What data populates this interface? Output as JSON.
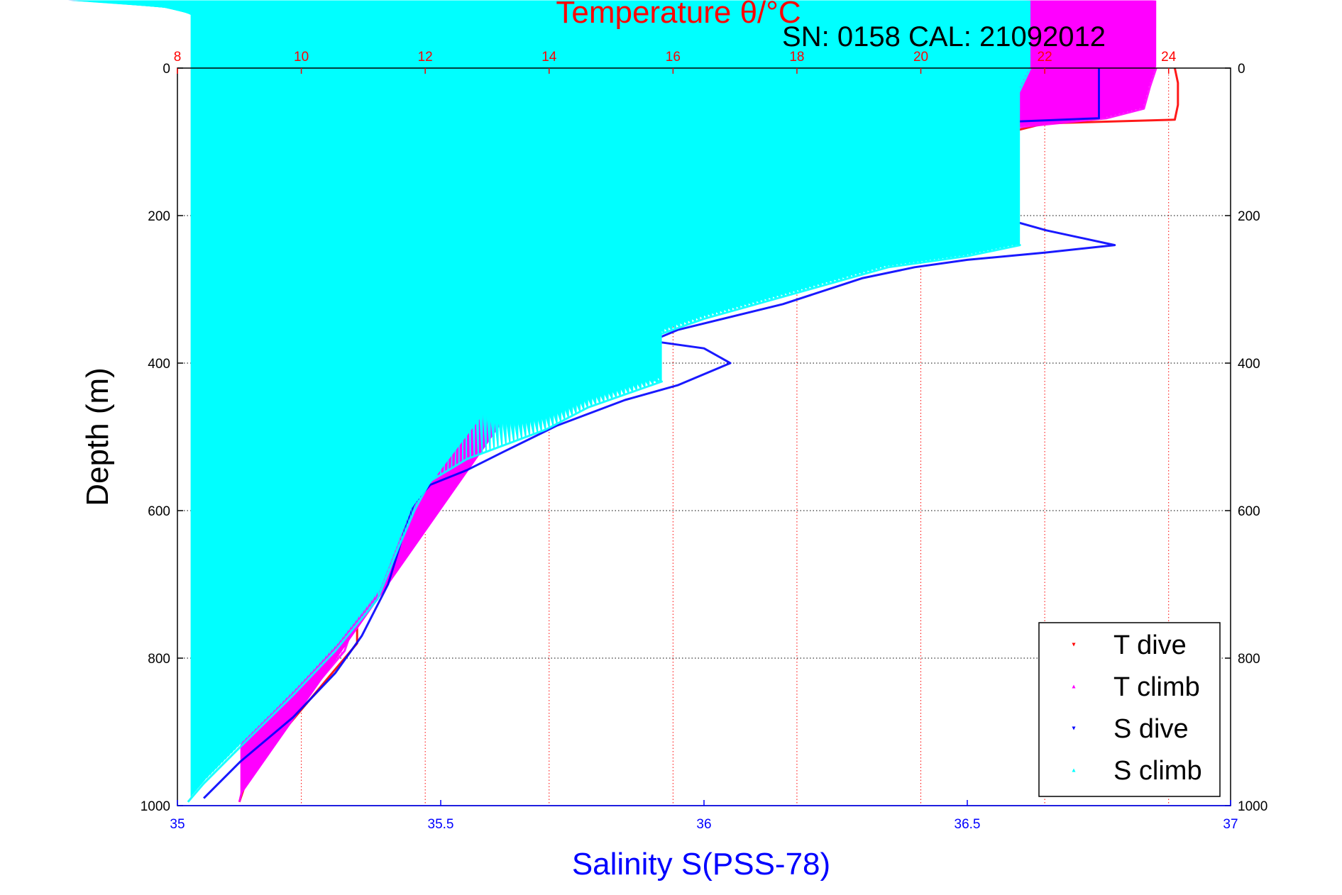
{
  "colors": {
    "temperature_axis": "#ff0000",
    "salinity_axis": "#0000ff",
    "T_dive": "#ff0000",
    "T_climb": "#ff00ff",
    "S_dive": "#0000ff",
    "S_climb": "#00ffff",
    "frame": "#000000",
    "background": "#ffffff"
  },
  "chart_data": {
    "type": "scatter",
    "top_title": "Temperature θ/°C",
    "subtitle": "SN: 0158  CAL: 21092012",
    "ylabel": "Depth (m)",
    "xlabel_bottom": "Salinity S(PSS-78)",
    "temperature_axis": {
      "range": [
        8,
        25
      ],
      "ticks": [
        8,
        10,
        12,
        14,
        16,
        18,
        20,
        22,
        24
      ],
      "tick_labels": [
        "8",
        "10",
        "12",
        "14",
        "16",
        "18",
        "20",
        "22",
        "24"
      ]
    },
    "salinity_axis": {
      "range": [
        35,
        37
      ],
      "ticks": [
        35,
        35.5,
        36,
        36.5,
        37
      ],
      "tick_labels": [
        "35",
        "35.5",
        "36",
        "36.5",
        "37"
      ]
    },
    "depth_axis": {
      "range": [
        0,
        1000
      ],
      "reversed": true,
      "ticks": [
        0,
        200,
        400,
        600,
        800,
        1000
      ],
      "tick_labels": [
        "0",
        "200",
        "400",
        "600",
        "800",
        "1000"
      ]
    },
    "grid": {
      "temperature_vertical": true,
      "depth_horizontal": true
    },
    "legend_position": "bottom-right",
    "series": [
      {
        "name": "T dive",
        "axis": "temperature",
        "marker": "triangle-down",
        "points": [
          [
            24.1,
            0
          ],
          [
            24.15,
            20
          ],
          [
            24.15,
            50
          ],
          [
            24.1,
            70
          ],
          [
            22,
            75
          ],
          [
            20.8,
            100
          ],
          [
            19.8,
            130
          ],
          [
            19.2,
            160
          ],
          [
            18.8,
            200
          ],
          [
            18.4,
            230
          ],
          [
            18.0,
            250
          ],
          [
            17.5,
            255
          ],
          [
            16.4,
            275
          ],
          [
            15.8,
            310
          ],
          [
            15.0,
            350
          ],
          [
            14.3,
            380
          ],
          [
            14.0,
            400
          ],
          [
            13.9,
            410
          ],
          [
            13.4,
            430
          ],
          [
            13.2,
            440
          ],
          [
            13.0,
            470
          ],
          [
            12.6,
            500
          ],
          [
            12.2,
            530
          ],
          [
            11.8,
            565
          ],
          [
            11.5,
            600
          ],
          [
            11.4,
            640
          ],
          [
            11.3,
            680
          ],
          [
            10.9,
            740
          ],
          [
            10.9,
            780
          ],
          [
            10.5,
            820
          ],
          [
            10.0,
            870
          ],
          [
            9.5,
            920
          ],
          [
            9.1,
            970
          ],
          [
            9.0,
            995
          ]
        ]
      },
      {
        "name": "T climb",
        "axis": "temperature",
        "marker": "triangle-up",
        "points": [
          [
            23.8,
            0
          ],
          [
            23.7,
            25
          ],
          [
            23.6,
            55
          ],
          [
            23.0,
            68
          ],
          [
            21.6,
            80
          ],
          [
            20.5,
            105
          ],
          [
            19.6,
            135
          ],
          [
            19.0,
            175
          ],
          [
            18.6,
            210
          ],
          [
            18.1,
            240
          ],
          [
            17.2,
            260
          ],
          [
            16.3,
            280
          ],
          [
            15.6,
            320
          ],
          [
            14.8,
            360
          ],
          [
            14.2,
            385
          ],
          [
            13.8,
            400
          ],
          [
            13.7,
            420
          ],
          [
            13.3,
            450
          ],
          [
            12.9,
            485
          ],
          [
            12.4,
            520
          ],
          [
            11.8,
            560
          ],
          [
            11.5,
            600
          ],
          [
            11.3,
            660
          ],
          [
            11.1,
            700
          ],
          [
            10.9,
            740
          ],
          [
            10.7,
            790
          ],
          [
            10.2,
            840
          ],
          [
            9.6,
            900
          ],
          [
            9.1,
            960
          ],
          [
            9.0,
            995
          ]
        ]
      },
      {
        "name": "S dive",
        "axis": "salinity",
        "marker": "triangle-down",
        "points": [
          [
            36.75,
            0
          ],
          [
            36.75,
            35
          ],
          [
            36.75,
            68
          ],
          [
            36.4,
            78
          ],
          [
            36.25,
            90
          ],
          [
            36.0,
            105
          ],
          [
            35.8,
            115
          ],
          [
            35.92,
            120
          ],
          [
            36.15,
            130
          ],
          [
            36.2,
            145
          ],
          [
            36.35,
            160
          ],
          [
            36.45,
            180
          ],
          [
            36.55,
            200
          ],
          [
            36.65,
            220
          ],
          [
            36.78,
            240
          ],
          [
            36.65,
            250
          ],
          [
            36.5,
            260
          ],
          [
            36.4,
            270
          ],
          [
            36.3,
            285
          ],
          [
            36.15,
            320
          ],
          [
            35.95,
            355
          ],
          [
            35.9,
            370
          ],
          [
            36.0,
            380
          ],
          [
            36.05,
            400
          ],
          [
            35.95,
            430
          ],
          [
            35.85,
            450
          ],
          [
            35.72,
            485
          ],
          [
            35.62,
            520
          ],
          [
            35.55,
            545
          ],
          [
            35.48,
            565
          ],
          [
            35.45,
            590
          ],
          [
            35.43,
            630
          ],
          [
            35.4,
            700
          ],
          [
            35.35,
            770
          ],
          [
            35.3,
            820
          ],
          [
            35.22,
            880
          ],
          [
            35.12,
            940
          ],
          [
            35.05,
            990
          ]
        ]
      },
      {
        "name": "S climb",
        "axis": "salinity",
        "marker": "triangle-up",
        "points": [
          [
            36.62,
            0
          ],
          [
            36.6,
            30
          ],
          [
            36.58,
            55
          ],
          [
            36.3,
            72
          ],
          [
            36.0,
            90
          ],
          [
            35.85,
            105
          ],
          [
            35.62,
            125
          ],
          [
            35.75,
            140
          ],
          [
            36.0,
            155
          ],
          [
            36.25,
            175
          ],
          [
            36.4,
            190
          ],
          [
            36.5,
            215
          ],
          [
            36.6,
            240
          ],
          [
            36.5,
            255
          ],
          [
            36.35,
            270
          ],
          [
            36.2,
            300
          ],
          [
            36.0,
            340
          ],
          [
            35.88,
            370
          ],
          [
            35.82,
            395
          ],
          [
            35.8,
            410
          ],
          [
            35.92,
            425
          ],
          [
            35.78,
            460
          ],
          [
            35.7,
            490
          ],
          [
            35.55,
            530
          ],
          [
            35.48,
            560
          ],
          [
            35.45,
            600
          ],
          [
            35.42,
            650
          ],
          [
            35.38,
            720
          ],
          [
            35.3,
            790
          ],
          [
            35.22,
            850
          ],
          [
            35.12,
            920
          ],
          [
            35.05,
            970
          ],
          [
            35.02,
            995
          ]
        ]
      }
    ]
  }
}
